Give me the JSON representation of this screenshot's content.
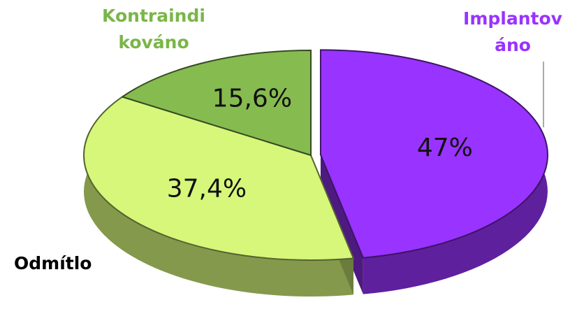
{
  "chart_data": {
    "type": "pie",
    "categories": [
      "Implantováno",
      "Odmítlo",
      "Kontraindikováno"
    ],
    "values": [
      47,
      37.4,
      15.6
    ],
    "value_labels": [
      "47%",
      "37,4%",
      "15,6%"
    ],
    "colors": [
      "#9933ff",
      "#d6f77a",
      "#86bb50"
    ]
  }
}
